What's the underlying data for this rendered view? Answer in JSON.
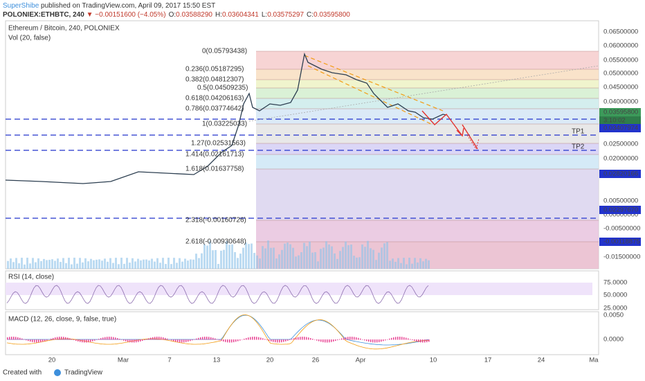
{
  "header": {
    "author": "SuperShibe",
    "published": "published on TradingView.com, April 09, 2017 15:50 EST",
    "symbol": "POLONIEX:ETHBTC, 240",
    "arrow": "▼",
    "change": "−0.00151600 (−4.05%)",
    "ohlc": [
      {
        "label": "O:",
        "value": "0.03588290"
      },
      {
        "label": "H:",
        "value": "0.03604341"
      },
      {
        "label": "L:",
        "value": "0.03575297"
      },
      {
        "label": "C:",
        "value": "0.03595800"
      }
    ]
  },
  "chart": {
    "title": "Ethereum / Bitcoin, 240, POLONIEX",
    "volume": "Vol (20, false)",
    "price_axis": [
      "0.06500000",
      "0.06000000",
      "0.05500000",
      "0.05000000",
      "0.04500000",
      "0.04000000",
      "0.02500000",
      "0.02000000",
      "0.00500000",
      "0.00000000",
      "-0.00500000",
      "-0.01500000"
    ],
    "markers": [
      "0.03595800",
      "3:10:02",
      "0.03407974",
      "0.02820166",
      "0.02297670",
      "-0.00118875"
    ],
    "fib_levels": [
      "0(0.05793438)",
      "0.236(0.05187295)",
      "0.382(0.04812307)",
      "0.5(0.04509235)",
      "0.618(0.04206163)",
      "0.786(0.03774642)",
      "1(0.03225033)",
      "1.27(0.02531563)",
      "1.414(0.02161713)",
      "1.618(0.01637758)",
      "2.318(-0.00160726)",
      "2.618(-0.00930648)"
    ],
    "targets": [
      "TP1",
      "TP2"
    ],
    "x_axis": [
      "20",
      "Mar",
      "7",
      "13",
      "20",
      "26",
      "Apr",
      "10",
      "17",
      "24",
      "Ma"
    ]
  },
  "rsi": {
    "title": "RSI (14, close)",
    "axis": [
      "75.0000",
      "50.0000",
      "25.0000"
    ]
  },
  "macd": {
    "title": "MACD (12, 26, close, 9, false, true)",
    "axis": [
      "0.0050",
      "0.0000"
    ]
  },
  "footer": {
    "created": "Created with",
    "brand": "TradingView"
  }
}
